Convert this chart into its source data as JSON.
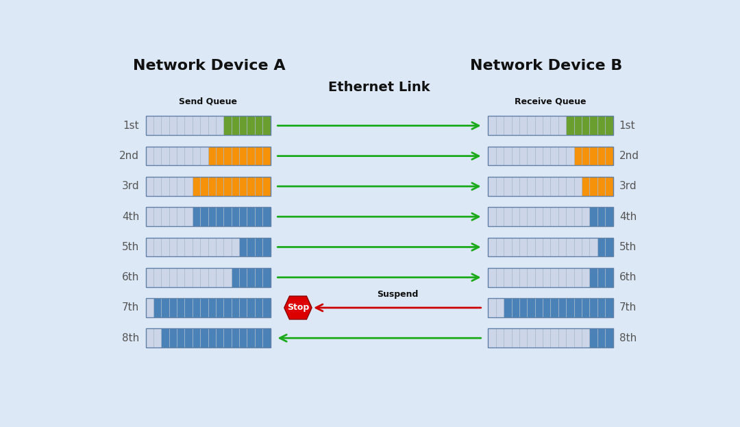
{
  "title_a": "Network Device A",
  "title_b": "Network Device B",
  "label_send": "Send Queue",
  "label_recv": "Receive Queue",
  "label_eth": "Ethernet Link",
  "label_suspend": "Suspend",
  "label_stop": "Stop",
  "background_color": "#dce8f5",
  "row_labels": [
    "1st",
    "2nd",
    "3rd",
    "4th",
    "5th",
    "6th",
    "7th",
    "8th"
  ],
  "cell_color_empty": "#ccd6e8",
  "cell_color_green": "#6a9e2e",
  "cell_color_orange": "#f5920a",
  "cell_color_blue": "#4a82b8",
  "cell_border_color": "#a8b8cc",
  "total_cells": 16,
  "send_queue_data": [
    {
      "empty": 10,
      "color": "green",
      "filled": 6
    },
    {
      "empty": 8,
      "color": "orange",
      "filled": 8
    },
    {
      "empty": 6,
      "color": "orange",
      "filled": 10
    },
    {
      "empty": 6,
      "color": "blue",
      "filled": 10
    },
    {
      "empty": 12,
      "color": "blue",
      "filled": 4
    },
    {
      "empty": 11,
      "color": "blue",
      "filled": 5
    },
    {
      "empty": 1,
      "color": "blue",
      "filled": 15
    },
    {
      "empty": 2,
      "color": "blue",
      "filled": 14
    }
  ],
  "recv_queue_data": [
    {
      "empty": 10,
      "color": "green",
      "filled": 6
    },
    {
      "empty": 11,
      "color": "orange",
      "filled": 5
    },
    {
      "empty": 12,
      "color": "orange",
      "filled": 4
    },
    {
      "empty": 13,
      "color": "blue",
      "filled": 3
    },
    {
      "empty": 14,
      "color": "blue",
      "filled": 2
    },
    {
      "empty": 13,
      "color": "blue",
      "filled": 3
    },
    {
      "empty": 2,
      "color": "blue",
      "filled": 14
    },
    {
      "empty": 13,
      "color": "blue",
      "filled": 3
    }
  ],
  "arrow_rows_forward": [
    0,
    1,
    2,
    3,
    4,
    5
  ],
  "arrow_row_stop": 6,
  "arrow_row_back": 7,
  "green_arrow_color": "#1aaa1a",
  "red_arrow_color": "#cc0000",
  "stop_shape_color": "#dd0000",
  "figwidth": 10.8,
  "figheight": 6.23,
  "dpi": 100
}
